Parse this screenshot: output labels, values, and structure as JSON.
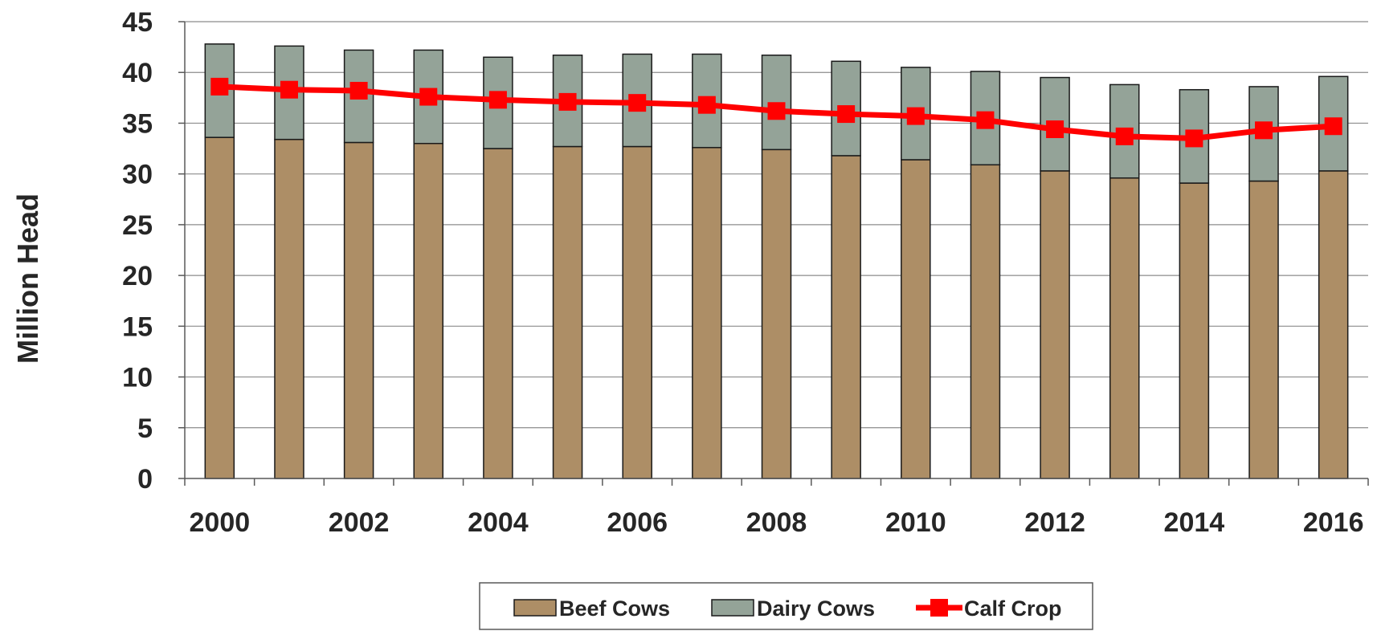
{
  "chart_data": {
    "type": "bar",
    "stacked": true,
    "categories": [
      "2000",
      "2001",
      "2002",
      "2003",
      "2004",
      "2005",
      "2006",
      "2007",
      "2008",
      "2009",
      "2010",
      "2011",
      "2012",
      "2013",
      "2014",
      "2015",
      "2016"
    ],
    "x_tick_labels": [
      "2000",
      "2002",
      "2004",
      "2006",
      "2008",
      "2010",
      "2012",
      "2014",
      "2016"
    ],
    "series": [
      {
        "name": "Beef Cows",
        "kind": "bar",
        "color": "#ad8e66",
        "values": [
          33.6,
          33.4,
          33.1,
          33.0,
          32.5,
          32.7,
          32.7,
          32.6,
          32.4,
          31.8,
          31.4,
          30.9,
          30.3,
          29.6,
          29.1,
          29.3,
          30.3
        ]
      },
      {
        "name": "Dairy Cows",
        "kind": "bar",
        "color": "#94a398",
        "values": [
          9.2,
          9.2,
          9.1,
          9.2,
          9.0,
          9.0,
          9.1,
          9.2,
          9.3,
          9.3,
          9.1,
          9.2,
          9.2,
          9.2,
          9.2,
          9.3,
          9.3
        ]
      },
      {
        "name": "Calf Crop",
        "kind": "line",
        "color": "#ff0000",
        "values": [
          38.6,
          38.3,
          38.2,
          37.6,
          37.3,
          37.1,
          37.0,
          36.8,
          36.2,
          35.9,
          35.7,
          35.3,
          34.4,
          33.7,
          33.5,
          34.3,
          34.7
        ]
      }
    ],
    "ylabel": "Million Head",
    "xlabel": "",
    "title": "",
    "ylim": [
      0,
      45
    ],
    "yticks": [
      0,
      5,
      10,
      15,
      20,
      25,
      30,
      35,
      40,
      45
    ],
    "grid": true,
    "legend_position": "bottom"
  }
}
